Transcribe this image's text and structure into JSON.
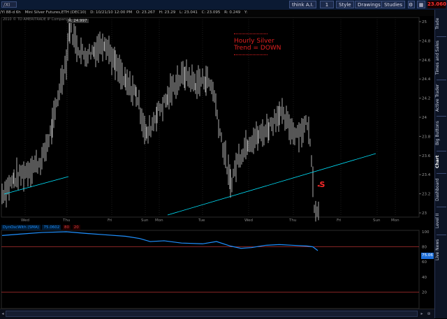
{
  "topbar": {
    "symbol": "/XI",
    "buttons": [
      "think A.I.",
      "1",
      "Style",
      "Drawings",
      "Studies"
    ],
    "price": "23.060"
  },
  "infobar": {
    "symbol": "/YI 88-d 6h",
    "description": "Mini Silver Futures,ETH (DEC10)",
    "date": "D: 10/21/10 12:00 PM",
    "open": "O: 23.267",
    "high": "H: 23.29",
    "low": "L: 23.041",
    "close": "C: 23.095",
    "range": "R: 0.249",
    "extra": "Y:"
  },
  "chart": {
    "subtitle": "2010 © TD AMERITRADE IP Company",
    "price_tag": "R: 24.997",
    "annotation_line1": "Hourly Silver",
    "annotation_line2": "Trend = DOWN",
    "signal": "S",
    "y_ticks": [
      "25",
      "24.8",
      "24.6",
      "24.4",
      "24.2",
      "24",
      "23.8",
      "23.6",
      "23.4",
      "23.2",
      "23"
    ],
    "x_labels": [
      "Wed",
      "Thu",
      "Fri",
      "Sun",
      "Mon",
      "Tue",
      "Wed",
      "Thu",
      "Fri",
      "Sun",
      "Mon"
    ]
  },
  "oscillator": {
    "name": "DynOscWith (SMA)",
    "value": "75.0602",
    "param1": "80",
    "param2": "20",
    "last_label": "75.06",
    "y_ticks": [
      "100",
      "80",
      "60",
      "40",
      "20"
    ],
    "overbought": 80,
    "oversold": 20
  },
  "sidetabs": [
    "Trade",
    "Times and Sales",
    "Active Trader",
    "Big Buttons",
    "Chart",
    "Dashboard",
    "Level II",
    "Live News"
  ],
  "colors": {
    "trendline": "#00e5ff",
    "oscillator": "#1e90ff",
    "levels": "#b03030",
    "annotation": "#e02020"
  }
}
